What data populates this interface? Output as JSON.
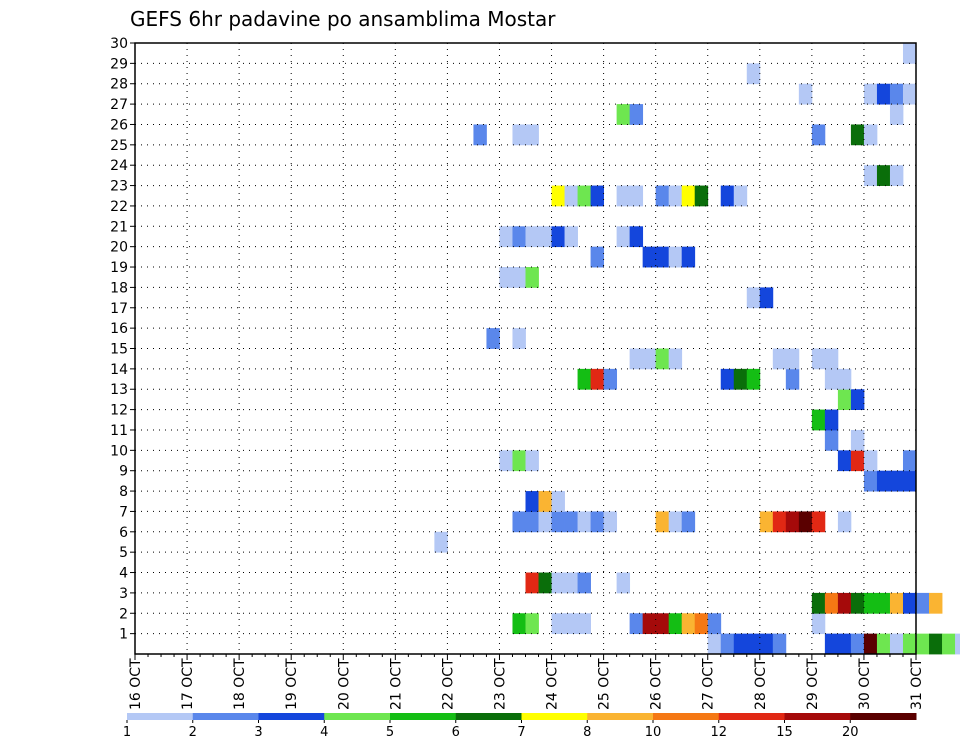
{
  "chart_data": {
    "type": "heatmap",
    "title": "GEFS 6hr padavine po ansamblima Mostar",
    "xlabel": "",
    "ylabel": "",
    "grid": true,
    "x_tick_labels": [
      "16 OCT",
      "17 OCT",
      "18 OCT",
      "19 OCT",
      "20 OCT",
      "21 OCT",
      "22 OCT",
      "23 OCT",
      "24 OCT",
      "25 OCT",
      "26 OCT",
      "27 OCT",
      "28 OCT",
      "29 OCT",
      "30 OCT",
      "31 OCT"
    ],
    "y_tick_labels": [
      "1",
      "2",
      "3",
      "4",
      "5",
      "6",
      "7",
      "8",
      "9",
      "10",
      "11",
      "12",
      "13",
      "14",
      "15",
      "16",
      "17",
      "18",
      "19",
      "20",
      "21",
      "22",
      "23",
      "24",
      "25",
      "26",
      "27",
      "28",
      "29",
      "30"
    ],
    "x_range_steps": [
      0,
      60
    ],
    "y_range": [
      0,
      30
    ],
    "legend": {
      "placement": "bottom",
      "colors": [
        "#b4c8f5",
        "#5a87eb",
        "#1446dc",
        "#6ee650",
        "#14be14",
        "#0a6e0a",
        "#ffff00",
        "#fab432",
        "#f57814",
        "#e12814",
        "#a50a0a",
        "#5a0000"
      ],
      "labels": [
        "1",
        "2",
        "3",
        "4",
        "5",
        "6",
        "7",
        "8",
        "10",
        "12",
        "15",
        "20"
      ]
    },
    "cells": [
      [
        0,
        44,
        1
      ],
      [
        0,
        45,
        2
      ],
      [
        0,
        46,
        3
      ],
      [
        0,
        47,
        3
      ],
      [
        0,
        48,
        3
      ],
      [
        0,
        49,
        2
      ],
      [
        0,
        53,
        3
      ],
      [
        0,
        54,
        3
      ],
      [
        0,
        55,
        2
      ],
      [
        0,
        56,
        12
      ],
      [
        0,
        57,
        4
      ],
      [
        0,
        58,
        1
      ],
      [
        0,
        59,
        4
      ],
      [
        0,
        60,
        4
      ],
      [
        0,
        61,
        6
      ],
      [
        0,
        62,
        4
      ],
      [
        0,
        63,
        1
      ],
      [
        0,
        64,
        1
      ],
      [
        1,
        29,
        5
      ],
      [
        1,
        30,
        4
      ],
      [
        1,
        32,
        1
      ],
      [
        1,
        33,
        1
      ],
      [
        1,
        34,
        1
      ],
      [
        1,
        38,
        2
      ],
      [
        1,
        39,
        11
      ],
      [
        1,
        40,
        11
      ],
      [
        1,
        41,
        5
      ],
      [
        1,
        42,
        8
      ],
      [
        1,
        43,
        9
      ],
      [
        1,
        44,
        2
      ],
      [
        1,
        52,
        1
      ],
      [
        2,
        52,
        6
      ],
      [
        2,
        53,
        9
      ],
      [
        2,
        54,
        11
      ],
      [
        2,
        55,
        6
      ],
      [
        2,
        56,
        5
      ],
      [
        2,
        57,
        5
      ],
      [
        2,
        58,
        8
      ],
      [
        2,
        59,
        3
      ],
      [
        2,
        60,
        2
      ],
      [
        2,
        61,
        8
      ],
      [
        3,
        30,
        10
      ],
      [
        3,
        31,
        6
      ],
      [
        3,
        32,
        1
      ],
      [
        3,
        33,
        1
      ],
      [
        3,
        34,
        2
      ],
      [
        3,
        37,
        1
      ],
      [
        5,
        23,
        1
      ],
      [
        6,
        29,
        2
      ],
      [
        6,
        30,
        2
      ],
      [
        6,
        31,
        1
      ],
      [
        6,
        32,
        2
      ],
      [
        6,
        33,
        2
      ],
      [
        6,
        34,
        1
      ],
      [
        6,
        35,
        2
      ],
      [
        6,
        36,
        1
      ],
      [
        6,
        40,
        8
      ],
      [
        6,
        41,
        1
      ],
      [
        6,
        42,
        2
      ],
      [
        6,
        48,
        8
      ],
      [
        6,
        49,
        10
      ],
      [
        6,
        50,
        11
      ],
      [
        6,
        51,
        12
      ],
      [
        6,
        52,
        10
      ],
      [
        6,
        54,
        1
      ],
      [
        7,
        30,
        3
      ],
      [
        7,
        31,
        8
      ],
      [
        7,
        32,
        1
      ],
      [
        8,
        56,
        2
      ],
      [
        8,
        57,
        3
      ],
      [
        8,
        58,
        3
      ],
      [
        8,
        59,
        3
      ],
      [
        9,
        28,
        1
      ],
      [
        9,
        29,
        4
      ],
      [
        9,
        30,
        1
      ],
      [
        9,
        54,
        3
      ],
      [
        9,
        55,
        10
      ],
      [
        9,
        56,
        1
      ],
      [
        9,
        59,
        2
      ],
      [
        10,
        53,
        2
      ],
      [
        10,
        55,
        1
      ],
      [
        11,
        52,
        5
      ],
      [
        11,
        53,
        3
      ],
      [
        12,
        54,
        4
      ],
      [
        12,
        55,
        3
      ],
      [
        13,
        34,
        5
      ],
      [
        13,
        35,
        10
      ],
      [
        13,
        36,
        2
      ],
      [
        13,
        45,
        3
      ],
      [
        13,
        46,
        6
      ],
      [
        13,
        47,
        5
      ],
      [
        13,
        50,
        2
      ],
      [
        13,
        53,
        1
      ],
      [
        13,
        54,
        1
      ],
      [
        14,
        38,
        1
      ],
      [
        14,
        39,
        1
      ],
      [
        14,
        40,
        4
      ],
      [
        14,
        41,
        1
      ],
      [
        14,
        49,
        1
      ],
      [
        14,
        50,
        1
      ],
      [
        14,
        52,
        1
      ],
      [
        14,
        53,
        1
      ],
      [
        15,
        27,
        2
      ],
      [
        15,
        29,
        1
      ],
      [
        17,
        47,
        1
      ],
      [
        17,
        48,
        3
      ],
      [
        18,
        28,
        1
      ],
      [
        18,
        29,
        1
      ],
      [
        18,
        30,
        4
      ],
      [
        19,
        35,
        2
      ],
      [
        19,
        39,
        3
      ],
      [
        19,
        40,
        3
      ],
      [
        19,
        41,
        1
      ],
      [
        19,
        42,
        3
      ],
      [
        20,
        28,
        1
      ],
      [
        20,
        29,
        2
      ],
      [
        20,
        30,
        1
      ],
      [
        20,
        31,
        1
      ],
      [
        20,
        32,
        3
      ],
      [
        20,
        33,
        1
      ],
      [
        20,
        37,
        1
      ],
      [
        20,
        38,
        3
      ],
      [
        22,
        32,
        7
      ],
      [
        22,
        33,
        1
      ],
      [
        22,
        34,
        4
      ],
      [
        22,
        35,
        3
      ],
      [
        22,
        37,
        1
      ],
      [
        22,
        38,
        1
      ],
      [
        22,
        40,
        2
      ],
      [
        22,
        41,
        1
      ],
      [
        22,
        42,
        7
      ],
      [
        22,
        43,
        6
      ],
      [
        22,
        45,
        3
      ],
      [
        22,
        46,
        1
      ],
      [
        23,
        56,
        1
      ],
      [
        23,
        57,
        6
      ],
      [
        23,
        58,
        1
      ],
      [
        25,
        26,
        2
      ],
      [
        25,
        29,
        1
      ],
      [
        25,
        30,
        1
      ],
      [
        25,
        52,
        2
      ],
      [
        25,
        55,
        6
      ],
      [
        25,
        56,
        1
      ],
      [
        26,
        37,
        4
      ],
      [
        26,
        38,
        2
      ],
      [
        26,
        58,
        1
      ],
      [
        27,
        51,
        1
      ],
      [
        27,
        56,
        1
      ],
      [
        27,
        57,
        3
      ],
      [
        27,
        58,
        2
      ],
      [
        27,
        59,
        1
      ],
      [
        28,
        47,
        1
      ],
      [
        29,
        59,
        1
      ]
    ]
  }
}
